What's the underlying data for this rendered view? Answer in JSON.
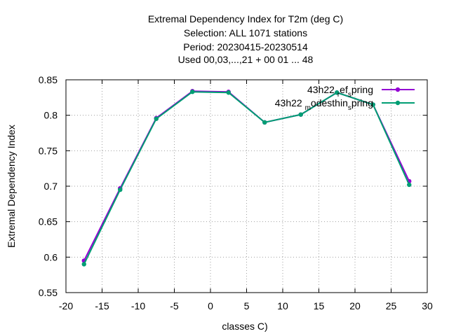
{
  "chart_data": {
    "type": "line",
    "title_lines": [
      "Extremal Dependency Index  for T2m (deg C)",
      "Selection: ALL   1071 stations",
      "Period: 20230415-20230514",
      "Used  00,03,...,21  + 00 01 ... 48"
    ],
    "xlabel": "classes C)",
    "ylabel": "Extremal Dependency Index",
    "xlim": [
      -20,
      30
    ],
    "ylim": [
      0.55,
      0.85
    ],
    "xticks": [
      -20,
      -15,
      -10,
      -5,
      0,
      5,
      10,
      15,
      20,
      25,
      30
    ],
    "yticks": [
      0.55,
      0.6,
      0.65,
      0.7,
      0.75,
      0.8,
      0.85
    ],
    "ytick_labels": [
      "0.55",
      "0.6",
      "0.65",
      "0.7",
      "0.75",
      "0.8",
      "0.85"
    ],
    "grid": true,
    "legend_position": "top-right",
    "x": [
      -17.5,
      -12.5,
      -7.5,
      -2.5,
      2.5,
      7.5,
      12.5,
      17.5,
      22.5,
      27.5
    ],
    "series": [
      {
        "name": "43h22_ref_spring",
        "legend": {
          "main": "43h22",
          "sub1": "r",
          "mid": "ef",
          "sub2": "s",
          "tail": "pring"
        },
        "color": "#9400d3",
        "values": [
          0.595,
          0.697,
          0.796,
          0.834,
          0.833,
          0.79,
          0.801,
          0.832,
          0.815,
          0.707
        ]
      },
      {
        "name": "43h22_modesthin_spring",
        "legend": {
          "main": "43h22",
          "sub1": "m",
          "mid": "odesthin",
          "sub2": "s",
          "tail": "pring"
        },
        "color": "#009e73",
        "values": [
          0.59,
          0.695,
          0.795,
          0.833,
          0.832,
          0.79,
          0.801,
          0.832,
          0.815,
          0.702
        ]
      }
    ]
  }
}
